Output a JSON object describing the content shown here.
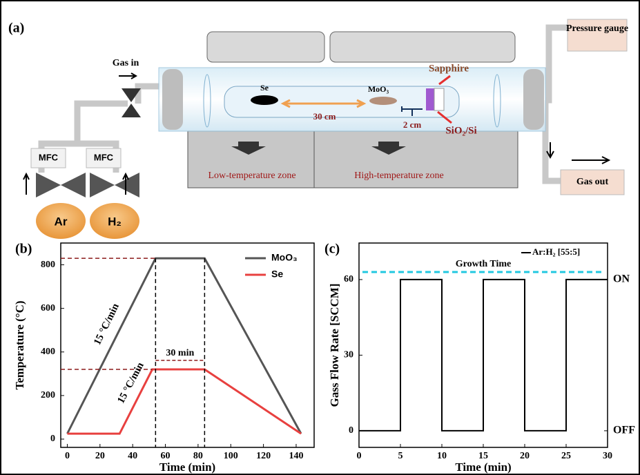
{
  "diagram": {
    "label": "(a)",
    "gas_in": "Gas in",
    "mfc_1": "MFC",
    "mfc_2": "MFC",
    "gas_1": "Ar",
    "gas_2": "H₂",
    "source_1": "Se",
    "source_2": "MoO₃",
    "distance_sources": "30 cm",
    "distance_substrate": "2 cm",
    "substrate_top": "Sapphire",
    "substrate_bottom": "SiO₂/Si",
    "zone_low": "Low-temperature zone",
    "zone_high": "High-temperature zone",
    "pressure": "Pressure gauge",
    "gas_out": "Gas out"
  },
  "chart_data": [
    {
      "type": "line",
      "label": "(b)",
      "x_label": "Time (min)",
      "y_label": "Temperature (°C)",
      "xlim": [
        -4,
        151
      ],
      "ylim": [
        -38,
        900
      ],
      "xticks": [
        0,
        20,
        40,
        60,
        80,
        100,
        120,
        140
      ],
      "yticks": [
        0,
        200,
        400,
        600,
        800
      ],
      "legend": "upper right",
      "series": [
        {
          "name": "MoO₃",
          "color": "#555555",
          "x": [
            0,
            54,
            84,
            143
          ],
          "values": [
            25,
            830,
            830,
            25
          ]
        },
        {
          "name": "Se",
          "color": "#e8403f",
          "x": [
            0,
            32,
            52,
            84,
            143
          ],
          "values": [
            25,
            25,
            320,
            320,
            25
          ]
        }
      ],
      "annotations": [
        "15 °C/min",
        "15 °C/min",
        "30 min"
      ]
    },
    {
      "type": "step",
      "label": "(c)",
      "x_label": "Time (min)",
      "y_label": "Gass Flow Rate [SCCM]",
      "xlim": [
        0,
        30
      ],
      "ylim": [
        -6.6,
        74.5
      ],
      "y2lim": [
        -6.6,
        74.5
      ],
      "xticks": [
        0,
        5,
        10,
        15,
        20,
        25,
        30
      ],
      "yticks": [
        0,
        30,
        60
      ],
      "y2ticks": [
        {
          "value": 0,
          "label": "OFF"
        },
        {
          "value": 60,
          "label": "ON"
        }
      ],
      "legend": "upper right",
      "x": [
        0,
        5,
        5,
        10,
        10,
        15,
        15,
        20,
        20,
        25,
        25,
        30
      ],
      "series": [
        {
          "name": "Ar:H₂ [55:5]",
          "color": "#000000",
          "values": [
            0,
            0,
            60,
            60,
            0,
            0,
            60,
            60,
            0,
            0,
            60,
            60
          ]
        }
      ],
      "reference": {
        "text": "Growth Time",
        "value": 63,
        "color": "#22c8e0"
      }
    }
  ]
}
